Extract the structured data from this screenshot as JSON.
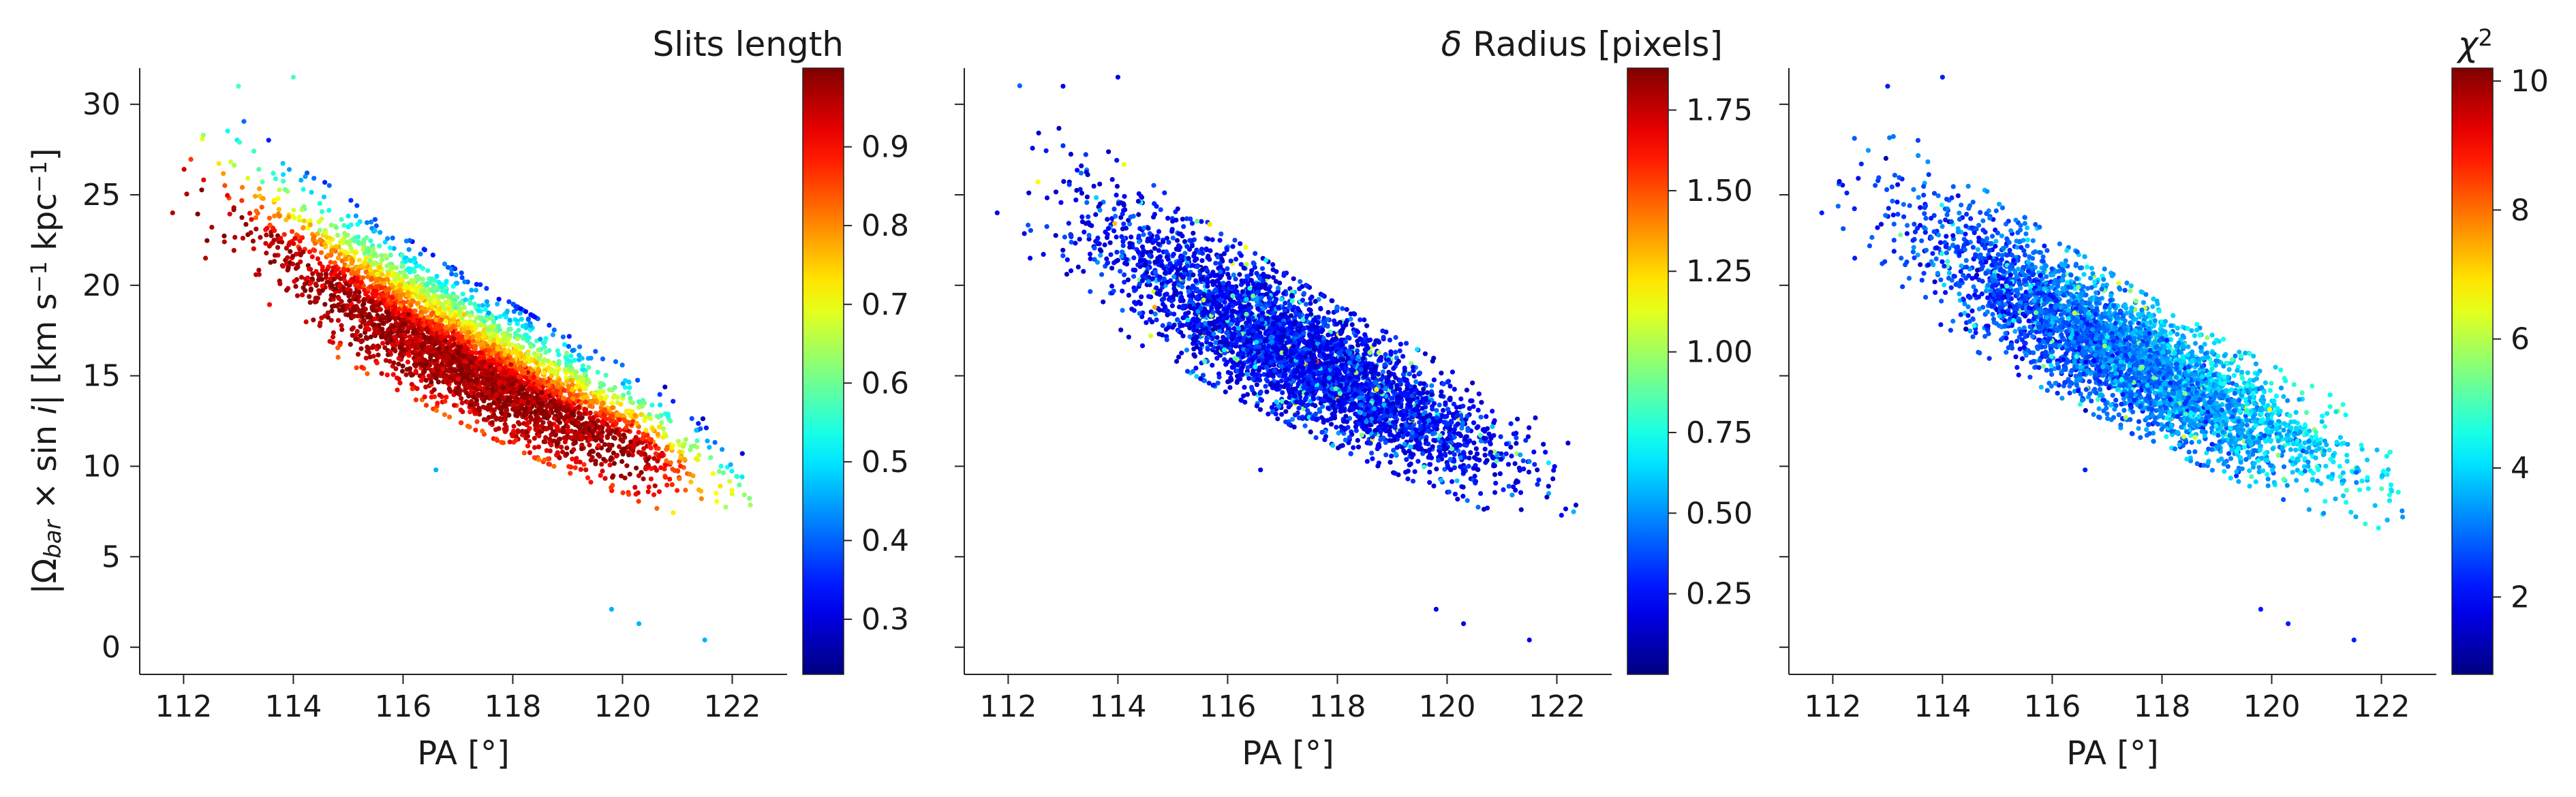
{
  "figure": {
    "ylabel": "|Ω_bar × sin i|   [km s⁻¹ kpc⁻¹]",
    "ylabel_parts": [
      "|Ω",
      "bar",
      " × sin ",
      "i",
      "|   [km s",
      "−1",
      " kpc",
      "−1",
      "]"
    ],
    "xlabel": "PA [°]"
  },
  "chart_data": [
    {
      "type": "scatter",
      "title": "",
      "xlabel": "PA [°]",
      "ylabel": "|Ω_bar × sin i|   [km s⁻¹ kpc⁻¹]",
      "xlim": [
        111.2,
        123.0
      ],
      "ylim": [
        -1.5,
        32.0
      ],
      "xticks": [
        112,
        114,
        116,
        118,
        120,
        122
      ],
      "yticks": [
        0,
        5,
        10,
        15,
        20,
        25,
        30
      ],
      "color_variable": "Slits length",
      "colorbar": {
        "label": "Slits length",
        "colormap": "jet",
        "range": [
          0.23,
          1.0
        ],
        "ticks": [
          0.3,
          0.4,
          0.5,
          0.6,
          0.7,
          0.8,
          0.9
        ],
        "tick_labels": [
          "0.3",
          "0.4",
          "0.5",
          "0.6",
          "0.7",
          "0.8",
          "0.9"
        ]
      },
      "point_count": 4200,
      "ridge": {
        "x": [
          112.5,
          113.5,
          114.5,
          115.5,
          116.5,
          117.5,
          118.5,
          119.5,
          120.5,
          121.5,
          122.3
        ],
        "y": [
          25.5,
          23.3,
          21.2,
          19.3,
          17.5,
          15.8,
          14.2,
          12.7,
          11.3,
          10.0,
          8.8
        ]
      },
      "outliers": [
        {
          "x": 111.8,
          "y": 24.0
        },
        {
          "x": 112.4,
          "y": 21.5
        },
        {
          "x": 113.0,
          "y": 31.0
        },
        {
          "x": 114.0,
          "y": 31.5
        },
        {
          "x": 116.6,
          "y": 9.8
        },
        {
          "x": 119.8,
          "y": 2.1
        },
        {
          "x": 120.3,
          "y": 1.3
        },
        {
          "x": 121.5,
          "y": 0.4
        }
      ],
      "grid": false,
      "legend": "none"
    },
    {
      "type": "scatter",
      "title": "",
      "xlabel": "PA [°]",
      "ylabel": "",
      "xlim": [
        111.2,
        123.0
      ],
      "ylim": [
        -1.5,
        32.0
      ],
      "xticks": [
        112,
        114,
        116,
        118,
        120,
        122
      ],
      "yticks": [
        0,
        5,
        10,
        15,
        20,
        25,
        30
      ],
      "color_variable": "δ Radius [pixels]",
      "colorbar": {
        "label": "δ Radius [pixels]",
        "label_parts": [
          "δ",
          " Radius [pixels]"
        ],
        "colormap": "jet",
        "range": [
          0.0,
          1.88
        ],
        "ticks": [
          0.25,
          0.5,
          0.75,
          1.0,
          1.25,
          1.5,
          1.75
        ],
        "tick_labels": [
          "0.25",
          "0.50",
          "0.75",
          "1.00",
          "1.25",
          "1.50",
          "1.75"
        ]
      },
      "point_count": 4200,
      "ridge": {
        "x": [
          112.5,
          113.5,
          114.5,
          115.5,
          116.5,
          117.5,
          118.5,
          119.5,
          120.5,
          121.5,
          122.3
        ],
        "y": [
          25.5,
          23.3,
          21.2,
          19.3,
          17.5,
          15.8,
          14.2,
          12.7,
          11.3,
          10.0,
          8.8
        ]
      },
      "outliers": [
        {
          "x": 111.8,
          "y": 24.0
        },
        {
          "x": 112.4,
          "y": 21.5
        },
        {
          "x": 113.0,
          "y": 31.0
        },
        {
          "x": 114.0,
          "y": 31.5
        },
        {
          "x": 116.6,
          "y": 9.8
        },
        {
          "x": 119.8,
          "y": 2.1
        },
        {
          "x": 120.3,
          "y": 1.3
        },
        {
          "x": 121.5,
          "y": 0.4
        }
      ],
      "grid": false,
      "legend": "none"
    },
    {
      "type": "scatter",
      "title": "",
      "xlabel": "PA [°]",
      "ylabel": "",
      "xlim": [
        111.2,
        123.0
      ],
      "ylim": [
        -1.5,
        32.0
      ],
      "xticks": [
        112,
        114,
        116,
        118,
        120,
        122
      ],
      "yticks": [
        0,
        5,
        10,
        15,
        20,
        25,
        30
      ],
      "color_variable": "χ²",
      "colorbar": {
        "label": "χ²",
        "label_parts": [
          "χ",
          "2"
        ],
        "colormap": "jet",
        "range": [
          0.8,
          10.2
        ],
        "ticks": [
          2,
          4,
          6,
          8,
          10
        ],
        "tick_labels": [
          "2",
          "4",
          "6",
          "8",
          "10"
        ]
      },
      "point_count": 4200,
      "ridge": {
        "x": [
          112.5,
          113.5,
          114.5,
          115.5,
          116.5,
          117.5,
          118.5,
          119.5,
          120.5,
          121.5,
          122.3
        ],
        "y": [
          25.5,
          23.3,
          21.2,
          19.3,
          17.5,
          15.8,
          14.2,
          12.7,
          11.3,
          10.0,
          8.8
        ]
      },
      "outliers": [
        {
          "x": 111.8,
          "y": 24.0
        },
        {
          "x": 112.4,
          "y": 21.5
        },
        {
          "x": 113.0,
          "y": 31.0
        },
        {
          "x": 114.0,
          "y": 31.5
        },
        {
          "x": 116.6,
          "y": 9.8
        },
        {
          "x": 119.8,
          "y": 2.1
        },
        {
          "x": 120.3,
          "y": 1.3
        },
        {
          "x": 121.5,
          "y": 0.4
        }
      ],
      "grid": false,
      "legend": "none"
    }
  ]
}
